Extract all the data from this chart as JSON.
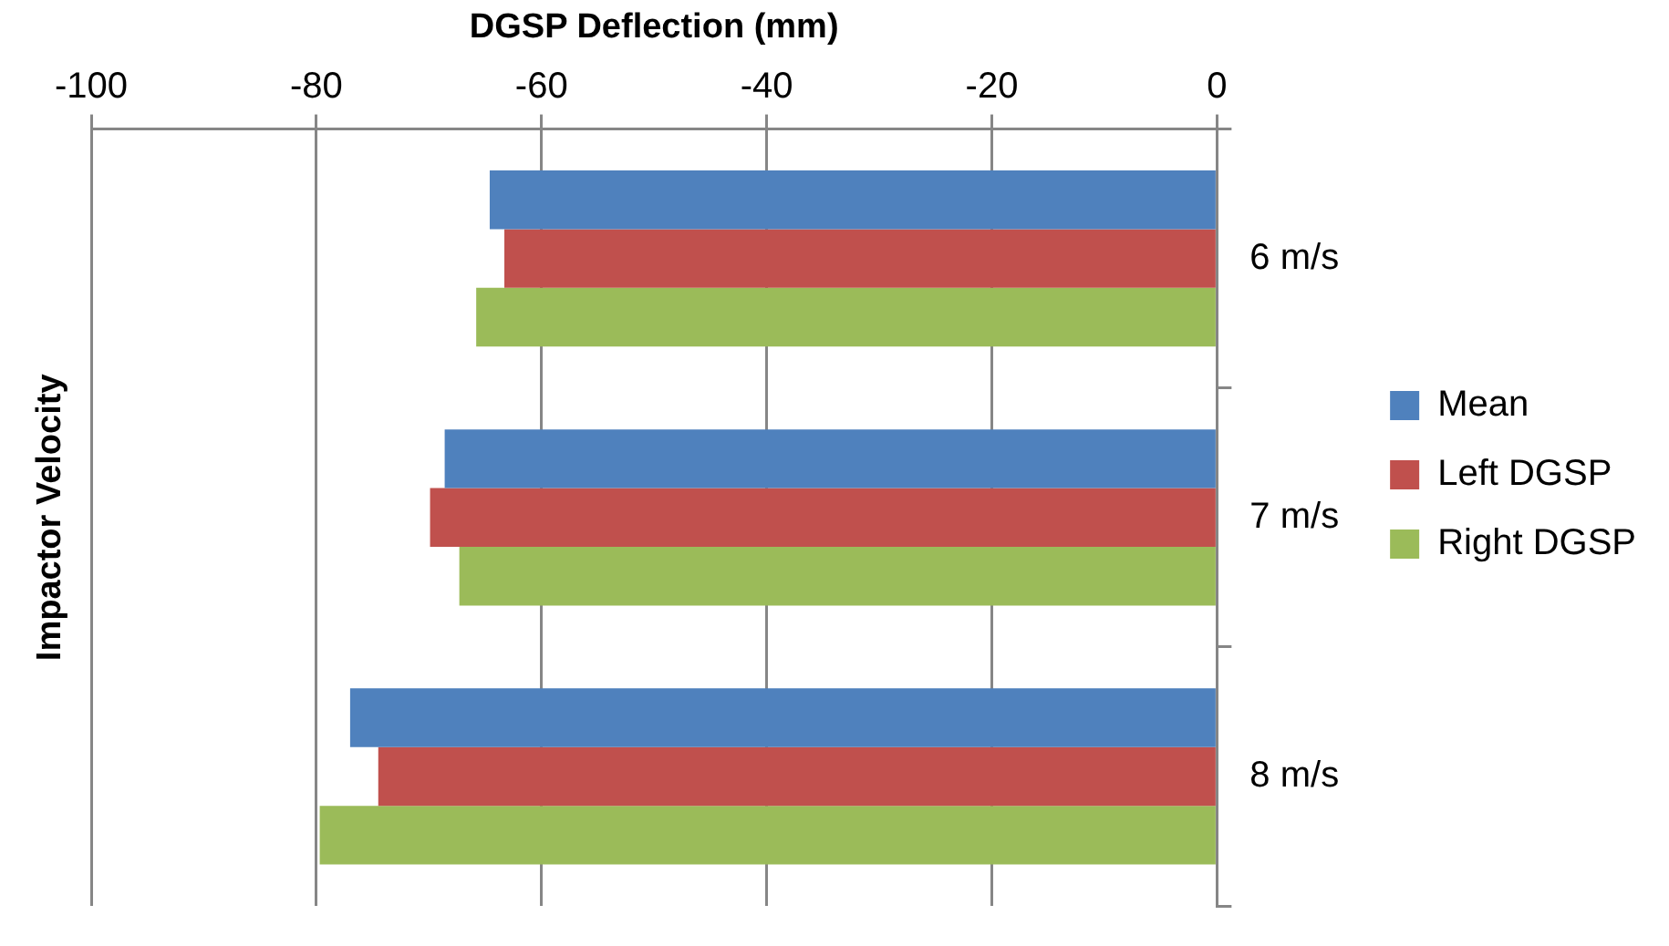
{
  "chart_data": {
    "type": "bar",
    "orientation": "horizontal",
    "xlabel": "DGSP Deflection (mm)",
    "ylabel": "Impactor Velocity",
    "categories": [
      "6 m/s",
      "7 m/s",
      "8 m/s"
    ],
    "series": [
      {
        "name": "Mean",
        "color": "#4f81bd",
        "values": [
          -64.6,
          -68.6,
          -77.0
        ]
      },
      {
        "name": "Left DGSP",
        "color": "#c0504d",
        "values": [
          -63.3,
          -69.9,
          -74.5
        ]
      },
      {
        "name": "Right DGSP",
        "color": "#9bbb59",
        "values": [
          -65.8,
          -67.3,
          -79.7
        ]
      }
    ],
    "xlim": [
      -100,
      0
    ],
    "xticks": [
      -100,
      -80,
      -60,
      -40,
      -20,
      0
    ],
    "grid": "x",
    "legend": "right"
  }
}
